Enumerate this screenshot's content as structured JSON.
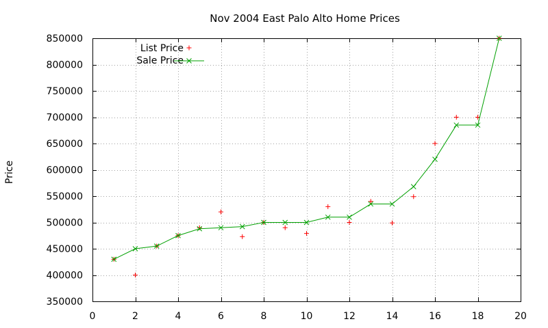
{
  "chart_data": {
    "type": "scatter",
    "title": "Nov 2004 East Palo Alto Home Prices",
    "xlabel": "",
    "ylabel": "Price",
    "xlim": [
      0,
      20
    ],
    "ylim": [
      350000,
      850000
    ],
    "xticks": [
      0,
      2,
      4,
      6,
      8,
      10,
      12,
      14,
      16,
      18,
      20
    ],
    "yticks": [
      350000,
      400000,
      450000,
      500000,
      550000,
      600000,
      650000,
      700000,
      750000,
      800000,
      850000
    ],
    "grid": true,
    "legend_position": "top-left",
    "series": [
      {
        "name": "List Price",
        "style": "points",
        "marker": "+",
        "color": "#ff0000",
        "points": [
          [
            1,
            430000
          ],
          [
            2,
            400000
          ],
          [
            3,
            455000
          ],
          [
            4,
            475000
          ],
          [
            5,
            490000
          ],
          [
            6,
            520000
          ],
          [
            7,
            473000
          ],
          [
            8,
            500000
          ],
          [
            9,
            490000
          ],
          [
            10,
            479000
          ],
          [
            11,
            530000
          ],
          [
            12,
            500000
          ],
          [
            13,
            540000
          ],
          [
            14,
            499000
          ],
          [
            15,
            549000
          ],
          [
            16,
            650000
          ],
          [
            17,
            700000
          ],
          [
            18,
            700000
          ],
          [
            19,
            850000
          ]
        ]
      },
      {
        "name": "Sale Price",
        "style": "linespoints",
        "marker": "x",
        "color": "#00a000",
        "points": [
          [
            1,
            430000
          ],
          [
            2,
            450000
          ],
          [
            3,
            455000
          ],
          [
            4,
            475000
          ],
          [
            5,
            488000
          ],
          [
            6,
            490000
          ],
          [
            7,
            492000
          ],
          [
            8,
            500000
          ],
          [
            9,
            500000
          ],
          [
            10,
            500000
          ],
          [
            11,
            510000
          ],
          [
            12,
            510000
          ],
          [
            13,
            535000
          ],
          [
            14,
            535000
          ],
          [
            15,
            568000
          ],
          [
            16,
            620000
          ],
          [
            17,
            685000
          ],
          [
            18,
            685000
          ],
          [
            19,
            850000
          ]
        ]
      }
    ]
  }
}
